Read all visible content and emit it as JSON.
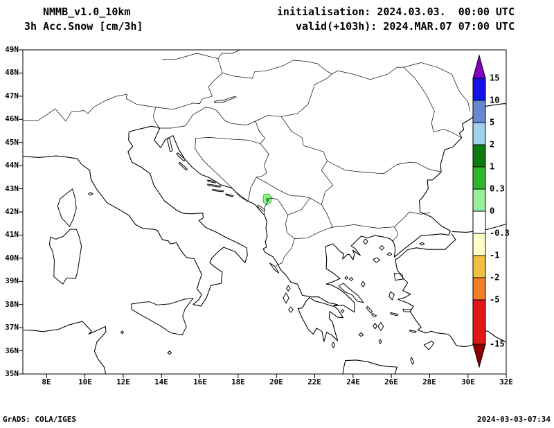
{
  "header": {
    "model": "NMMB_v1.0_10km",
    "field": "3h Acc.Snow [cm/3h]",
    "init_line": "initialisation: 2024.03.03.  00:00 UTC",
    "valid_line": "valid(+103h): 2024.MAR.07 07:00 UTC"
  },
  "axes": {
    "lat": [
      "49N",
      "48N",
      "47N",
      "46N",
      "45N",
      "44N",
      "43N",
      "42N",
      "41N",
      "40N",
      "39N",
      "38N",
      "37N",
      "36N",
      "35N"
    ],
    "lon": [
      "8E",
      "10E",
      "12E",
      "14E",
      "16E",
      "18E",
      "20E",
      "22E",
      "24E",
      "26E",
      "28E",
      "30E",
      "32E"
    ]
  },
  "colorbar": {
    "labels": [
      "15",
      "10",
      "5",
      "2",
      "1",
      "0.3",
      "0",
      "-0.3",
      "-1",
      "-2",
      "-5",
      "-15"
    ],
    "colors": [
      "#8000C8",
      "#1414E6",
      "#6688CC",
      "#A0D2F0",
      "#0F7A0F",
      "#2EB82E",
      "#99EE99",
      "#FFFFFF",
      "#FFFFC8",
      "#F0C040",
      "#F08028",
      "#E01818",
      "#900000"
    ]
  },
  "footer": {
    "left": "GrADS: COLA/IGES",
    "right": "2024-03-03-07:34"
  },
  "chart_data": {
    "type": "heatmap",
    "title": "3h Acc.Snow [cm/3h]",
    "lon_range": [
      8,
      32
    ],
    "lat_range": [
      35,
      49
    ],
    "levels": [
      -15,
      -5,
      -2,
      -1,
      -0.3,
      0,
      0.3,
      1,
      2,
      5,
      10,
      15
    ],
    "data_points": [
      {
        "lon": 19.5,
        "lat": 42.55,
        "value_cm_3h": "0.3-2",
        "note": "small shaded snow patch near Montenegro/Albania border"
      }
    ]
  }
}
